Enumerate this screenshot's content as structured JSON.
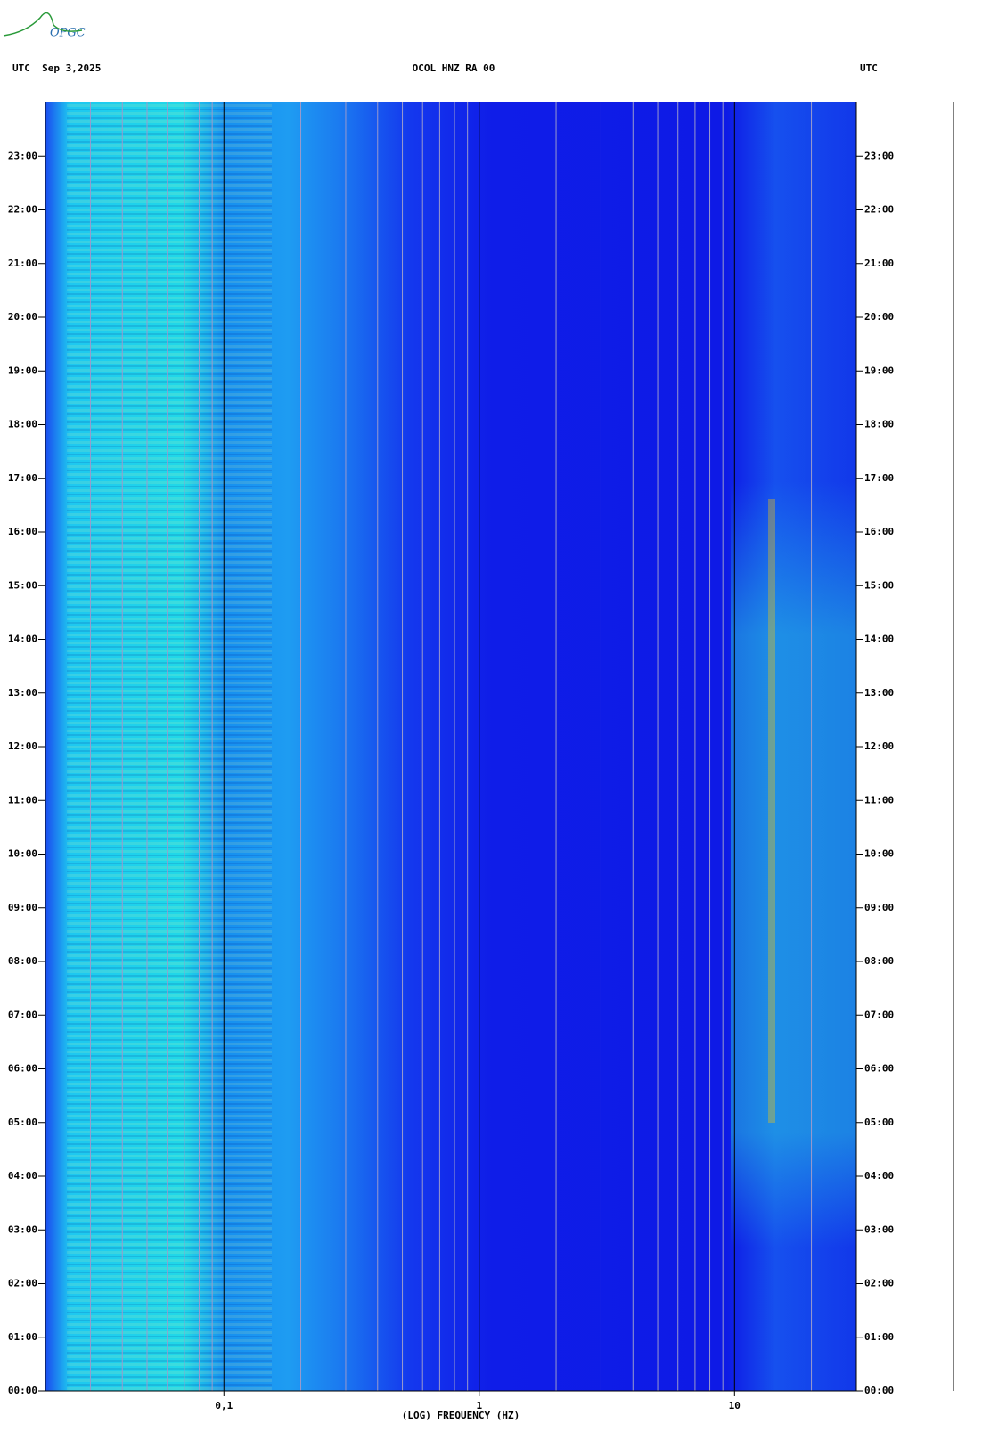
{
  "logo": "OPGC",
  "chart_data": {
    "type": "spectrogram",
    "title": "OCOL HNZ RA 00",
    "left_header": "UTC  Sep 3,2025",
    "right_header": "UTC",
    "xlabel": "(LOG) FREQUENCY (HZ)",
    "xscale": "log",
    "xlim": [
      0.02,
      30
    ],
    "xticks": [
      {
        "value": 0.1,
        "label": "0,1"
      },
      1,
      10
    ],
    "xminorticks": [
      0.03,
      0.04,
      0.05,
      0.06,
      0.07,
      0.08,
      0.09,
      0.2,
      0.3,
      0.4,
      0.5,
      0.6,
      0.7,
      0.8,
      0.9,
      2,
      3,
      4,
      5,
      6,
      7,
      8,
      9,
      20
    ],
    "ylim": [
      0,
      24
    ],
    "yticks": [
      {
        "value": 0,
        "label": "00:00"
      },
      {
        "value": 1,
        "label": "01:00"
      },
      {
        "value": 2,
        "label": "02:00"
      },
      {
        "value": 3,
        "label": "03:00"
      },
      {
        "value": 4,
        "label": "04:00"
      },
      {
        "value": 5,
        "label": "05:00"
      },
      {
        "value": 6,
        "label": "06:00"
      },
      {
        "value": 7,
        "label": "07:00"
      },
      {
        "value": 8,
        "label": "08:00"
      },
      {
        "value": 9,
        "label": "09:00"
      },
      {
        "value": 10,
        "label": "10:00"
      },
      {
        "value": 11,
        "label": "11:00"
      },
      {
        "value": 12,
        "label": "12:00"
      },
      {
        "value": 13,
        "label": "13:00"
      },
      {
        "value": 14,
        "label": "14:00"
      },
      {
        "value": 15,
        "label": "15:00"
      },
      {
        "value": 16,
        "label": "16:00"
      },
      {
        "value": 17,
        "label": "17:00"
      },
      {
        "value": 18,
        "label": "18:00"
      },
      {
        "value": 19,
        "label": "19:00"
      },
      {
        "value": 20,
        "label": "20:00"
      },
      {
        "value": 21,
        "label": "21:00"
      },
      {
        "value": 22,
        "label": "22:00"
      },
      {
        "value": 23,
        "label": "23:00"
      }
    ]
  }
}
